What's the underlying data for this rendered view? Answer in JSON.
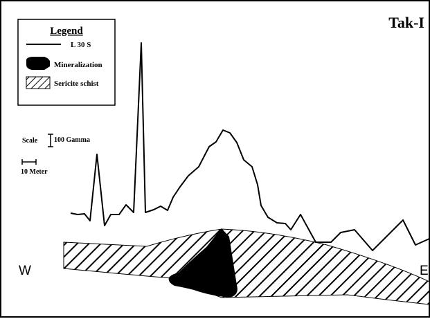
{
  "title": "Tak-I",
  "legend": {
    "heading": "Legend",
    "items": [
      {
        "label": "L 30 S",
        "symbol": "line"
      },
      {
        "label": "Mineralization",
        "symbol": "solid-black"
      },
      {
        "label": "Sericite schist",
        "symbol": "diagonal-hatch"
      }
    ]
  },
  "scale": {
    "label": "Scale",
    "vertical": "100 Gamma",
    "horizontal": "10 Meter"
  },
  "directions": {
    "west": "W",
    "east": "E"
  },
  "colors": {
    "ink": "#000000",
    "background": "#ffffff"
  }
}
